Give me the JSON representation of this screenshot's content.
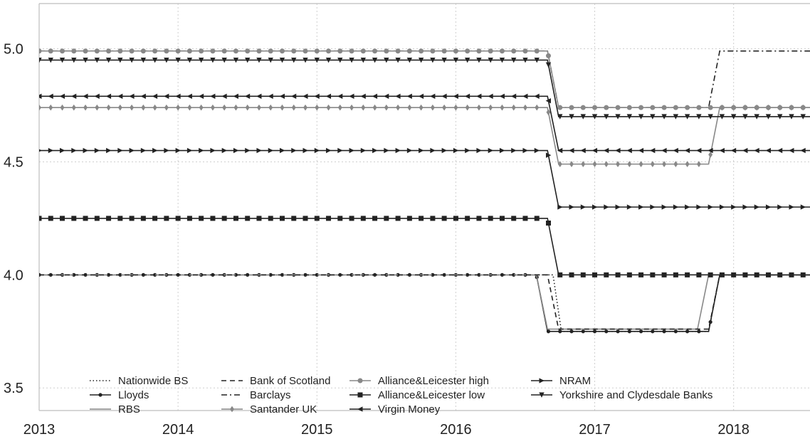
{
  "chart_data": {
    "type": "line",
    "title": "",
    "xlabel": "",
    "ylabel": "",
    "xlim": [
      2013,
      2018.55
    ],
    "ylim": [
      3.4,
      5.2
    ],
    "x_ticks": [
      2013,
      2014,
      2015,
      2016,
      2017,
      2018
    ],
    "x_tick_labels": [
      "2013",
      "2014",
      "2015",
      "2016",
      "2017",
      "2018"
    ],
    "y_ticks": [
      3.5,
      4.0,
      4.5,
      5.0
    ],
    "y_tick_labels": [
      "3.5",
      "4.0",
      "4.5",
      "5.0"
    ],
    "grid": true,
    "legend_position": "bottom-center",
    "series": [
      {
        "name": "Nationwide BS",
        "color": "#222222",
        "dash": "dotted",
        "marker": "none",
        "points": [
          [
            2013,
            4.0
          ],
          [
            2016.7,
            4.0
          ],
          [
            2016.76,
            3.75
          ],
          [
            2017.82,
            3.75
          ],
          [
            2017.9,
            4.0
          ],
          [
            2018.55,
            4.0
          ]
        ]
      },
      {
        "name": "Lloyds",
        "color": "#222222",
        "dash": "solid",
        "marker": "dot",
        "points": [
          [
            2013,
            4.0
          ],
          [
            2016.58,
            4.0
          ],
          [
            2016.66,
            3.75
          ],
          [
            2017.82,
            3.75
          ],
          [
            2017.9,
            4.0
          ],
          [
            2018.55,
            4.0
          ]
        ]
      },
      {
        "name": "RBS",
        "color": "#888888",
        "dash": "solid",
        "marker": "none",
        "points": [
          [
            2013,
            4.0
          ],
          [
            2016.58,
            4.0
          ],
          [
            2016.66,
            3.76
          ],
          [
            2017.74,
            3.76
          ],
          [
            2017.82,
            4.0
          ],
          [
            2018.55,
            4.0
          ]
        ]
      },
      {
        "name": "Bank of Scotland",
        "color": "#222222",
        "dash": "dashed",
        "marker": "none",
        "points": [
          [
            2013,
            4.0
          ],
          [
            2016.66,
            4.0
          ],
          [
            2016.74,
            3.76
          ],
          [
            2017.82,
            3.76
          ],
          [
            2017.9,
            4.0
          ],
          [
            2018.55,
            4.0
          ]
        ]
      },
      {
        "name": "Barclays",
        "color": "#222222",
        "dash": "dashdot",
        "marker": "none",
        "points": [
          [
            2013,
            4.99
          ],
          [
            2016.66,
            4.99
          ],
          [
            2016.74,
            4.74
          ],
          [
            2017.82,
            4.74
          ],
          [
            2017.9,
            4.99
          ],
          [
            2018.55,
            4.99
          ]
        ]
      },
      {
        "name": "Santander UK",
        "color": "#888888",
        "dash": "solid",
        "marker": "diamond",
        "points": [
          [
            2013,
            4.74
          ],
          [
            2016.66,
            4.74
          ],
          [
            2016.74,
            4.49
          ],
          [
            2017.82,
            4.49
          ],
          [
            2017.9,
            4.74
          ],
          [
            2018.55,
            4.74
          ]
        ]
      },
      {
        "name": "Alliance&Leicester high",
        "color": "#888888",
        "dash": "solid",
        "marker": "circle",
        "points": [
          [
            2013,
            4.99
          ],
          [
            2016.66,
            4.99
          ],
          [
            2016.74,
            4.74
          ],
          [
            2018.55,
            4.74
          ]
        ]
      },
      {
        "name": "Alliance&Leicester low",
        "color": "#222222",
        "dash": "solid",
        "marker": "square",
        "points": [
          [
            2013,
            4.25
          ],
          [
            2016.66,
            4.25
          ],
          [
            2016.74,
            4.0
          ],
          [
            2018.55,
            4.0
          ]
        ]
      },
      {
        "name": "Virgin Money",
        "color": "#222222",
        "dash": "solid",
        "marker": "triangle-left",
        "points": [
          [
            2013,
            4.79
          ],
          [
            2016.66,
            4.79
          ],
          [
            2016.74,
            4.55
          ],
          [
            2018.55,
            4.55
          ]
        ]
      },
      {
        "name": "NRAM",
        "color": "#222222",
        "dash": "solid",
        "marker": "triangle-right",
        "points": [
          [
            2013,
            4.55
          ],
          [
            2016.66,
            4.55
          ],
          [
            2016.74,
            4.3
          ],
          [
            2018.55,
            4.3
          ]
        ]
      },
      {
        "name": "Yorkshire and Clydesdale Banks",
        "color": "#222222",
        "dash": "solid",
        "marker": "triangle-down",
        "points": [
          [
            2013,
            4.95
          ],
          [
            2016.66,
            4.95
          ],
          [
            2016.74,
            4.7
          ],
          [
            2018.55,
            4.7
          ]
        ]
      }
    ]
  }
}
